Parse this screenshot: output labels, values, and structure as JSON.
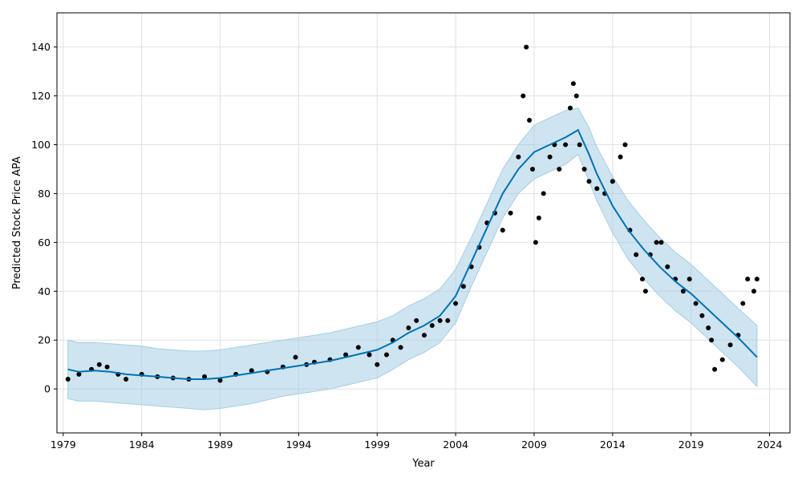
{
  "chart_data": {
    "type": "line",
    "xlabel": "Year",
    "ylabel": "Predicted Stock Price APA",
    "xlim": [
      1978.6,
      2025.3
    ],
    "ylim": [
      -18,
      154
    ],
    "x_ticks": [
      "1979",
      "1984",
      "1989",
      "1994",
      "1999",
      "2004",
      "2009",
      "2014",
      "2019",
      "2024"
    ],
    "y_ticks": [
      "0",
      "20",
      "40",
      "60",
      "80",
      "100",
      "120",
      "140"
    ],
    "grid": true,
    "legend": "none",
    "colors": {
      "forecast_line": "#0072b2",
      "uncertainty_band": "#a6cee3",
      "observed_points": "#000000",
      "grid": "#e0e0e0"
    },
    "series": [
      {
        "kind": "forecast",
        "x": [
          1979.3,
          1980,
          1981,
          1982,
          1983,
          1984,
          1985,
          1986,
          1987,
          1988,
          1989,
          1990,
          1991,
          1992,
          1993,
          1994,
          1995,
          1996,
          1997,
          1998,
          1999,
          2000,
          2001,
          2002,
          2003,
          2004,
          2005,
          2006,
          2007,
          2008,
          2009,
          2010,
          2011,
          2011.8,
          2012.5,
          2013,
          2014,
          2015,
          2016,
          2017,
          2018,
          2019,
          2020,
          2021,
          2022,
          2023.2
        ],
        "y": [
          8,
          7,
          7.5,
          7,
          6,
          5.5,
          5,
          4.5,
          4,
          4,
          4.5,
          5.5,
          6.5,
          7.5,
          8.5,
          9.5,
          10.5,
          11.5,
          13,
          14.5,
          16,
          19,
          23,
          26,
          30,
          38,
          52,
          66,
          80,
          90,
          97,
          100,
          103,
          106,
          96,
          88,
          75,
          65,
          57,
          50,
          44,
          39,
          33,
          27,
          21,
          13
        ]
      },
      {
        "kind": "uncertainty",
        "x": [
          1979.3,
          1980,
          1981,
          1982,
          1983,
          1984,
          1985,
          1986,
          1987,
          1988,
          1989,
          1990,
          1991,
          1992,
          1993,
          1994,
          1995,
          1996,
          1997,
          1998,
          1999,
          2000,
          2001,
          2002,
          2003,
          2004,
          2005,
          2006,
          2007,
          2008,
          2009,
          2010,
          2011,
          2011.8,
          2012.5,
          2013,
          2014,
          2015,
          2016,
          2017,
          2018,
          2019,
          2020,
          2021,
          2022,
          2023.2
        ],
        "upper": [
          20,
          19,
          19,
          18.5,
          18,
          17.5,
          16.5,
          16,
          15.5,
          15.5,
          16,
          17,
          18,
          19,
          20,
          21,
          22,
          23,
          24.5,
          26,
          27.5,
          30,
          34,
          37,
          41,
          49,
          62,
          76,
          90,
          100,
          108,
          111,
          114,
          115,
          107,
          99,
          87,
          77,
          69,
          62,
          56,
          51,
          45,
          39,
          33,
          26
        ],
        "lower": [
          -4,
          -5,
          -5,
          -5.5,
          -6,
          -6.5,
          -7,
          -7.5,
          -8,
          -8.5,
          -8,
          -7,
          -6,
          -4.5,
          -3,
          -2,
          -1,
          0,
          1.5,
          3,
          4.5,
          8,
          12,
          15,
          19,
          27,
          42,
          56,
          70,
          80,
          86,
          89,
          92,
          96,
          85,
          77,
          64,
          53,
          45,
          38,
          32,
          27,
          21,
          15,
          9,
          1
        ]
      },
      {
        "kind": "observed",
        "x": [
          1979.3,
          1980,
          1980.8,
          1981.3,
          1981.8,
          1982.5,
          1983,
          1984,
          1985,
          1986,
          1987,
          1988,
          1989,
          1990,
          1991,
          1992,
          1993,
          1993.8,
          1994.5,
          1995,
          1996,
          1997,
          1997.8,
          1998.5,
          1999,
          1999.6,
          2000,
          2000.5,
          2001,
          2001.5,
          2002,
          2002.5,
          2003,
          2003.5,
          2004,
          2004.5,
          2005,
          2005.5,
          2006,
          2006.5,
          2007,
          2007.5,
          2008,
          2008.3,
          2008.5,
          2008.7,
          2008.9,
          2009.1,
          2009.3,
          2009.6,
          2010,
          2010.3,
          2010.6,
          2011,
          2011.3,
          2011.5,
          2011.7,
          2011.9,
          2012.2,
          2012.5,
          2013,
          2013.5,
          2014,
          2014.5,
          2014.8,
          2015.1,
          2015.5,
          2015.9,
          2016.1,
          2016.4,
          2016.8,
          2017.1,
          2017.5,
          2018,
          2018.5,
          2018.9,
          2019.3,
          2019.7,
          2020.1,
          2020.3,
          2020.5,
          2021,
          2021.5,
          2022,
          2022.3,
          2022.6,
          2023,
          2023.2
        ],
        "y": [
          4,
          6,
          8,
          10,
          9,
          6,
          4,
          6,
          5,
          4.5,
          4,
          5,
          3.5,
          6,
          7.5,
          7,
          9,
          13,
          10,
          11,
          12,
          14,
          17,
          14,
          10,
          14,
          20,
          17,
          25,
          28,
          22,
          26,
          28,
          28,
          35,
          42,
          50,
          58,
          68,
          72,
          65,
          72,
          95,
          120,
          140,
          110,
          90,
          60,
          70,
          80,
          95,
          100,
          90,
          100,
          115,
          125,
          120,
          100,
          90,
          85,
          82,
          80,
          85,
          95,
          100,
          65,
          55,
          45,
          40,
          55,
          60,
          60,
          50,
          45,
          40,
          45,
          35,
          30,
          25,
          20,
          8,
          12,
          18,
          22,
          35,
          45,
          40,
          45
        ]
      }
    ]
  }
}
